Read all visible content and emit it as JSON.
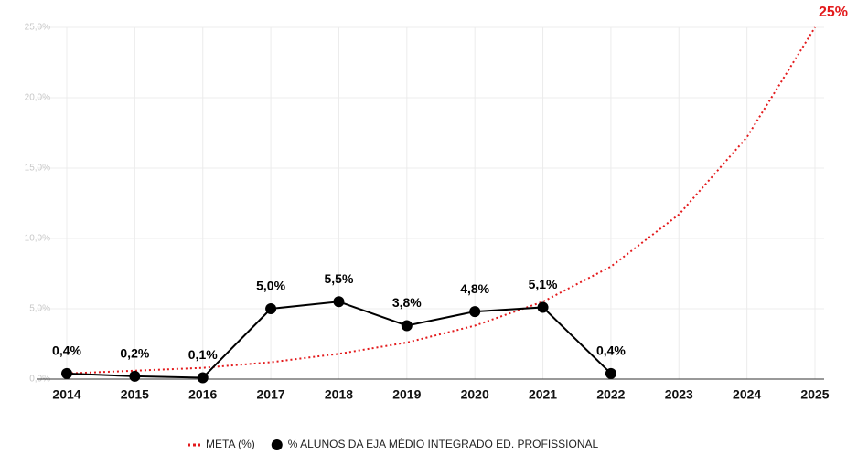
{
  "chart_data": {
    "type": "line",
    "categories": [
      "2014",
      "2015",
      "2016",
      "2017",
      "2018",
      "2019",
      "2020",
      "2021",
      "2022",
      "2023",
      "2024",
      "2025"
    ],
    "series": [
      {
        "name": "META (%)",
        "color": "#e31a1c",
        "style": "dotted",
        "values": [
          0.4,
          0.6,
          0.8,
          1.2,
          1.8,
          2.6,
          3.8,
          5.5,
          8.0,
          11.7,
          17.2,
          25
        ],
        "value_labels": [
          null,
          null,
          null,
          null,
          null,
          null,
          null,
          null,
          null,
          null,
          null,
          "25%"
        ]
      },
      {
        "name": "% ALUNOS DA EJA MÉDIO INTEGRADO ED. PROFISSIONAL",
        "color": "#000000",
        "style": "markers",
        "values": [
          0.4,
          0.2,
          0.1,
          5.0,
          5.5,
          3.8,
          4.8,
          5.1,
          0.4,
          null,
          null,
          null
        ],
        "value_labels": [
          "0,4%",
          "0,2%",
          "0,1%",
          "5,0%",
          "5,5%",
          "3,8%",
          "4,8%",
          "5,1%",
          "0,4%",
          null,
          null,
          null
        ]
      }
    ],
    "ylim": [
      0,
      25
    ],
    "yticks": [
      {
        "value": 0,
        "label": "0,0%"
      },
      {
        "value": 5,
        "label": "5,0%"
      },
      {
        "value": 10,
        "label": "10,0%"
      },
      {
        "value": 15,
        "label": "15,0%"
      },
      {
        "value": 20,
        "label": "20,0%"
      },
      {
        "value": 25,
        "label": "25,0%"
      }
    ],
    "grid": true,
    "legend": "bottom"
  }
}
